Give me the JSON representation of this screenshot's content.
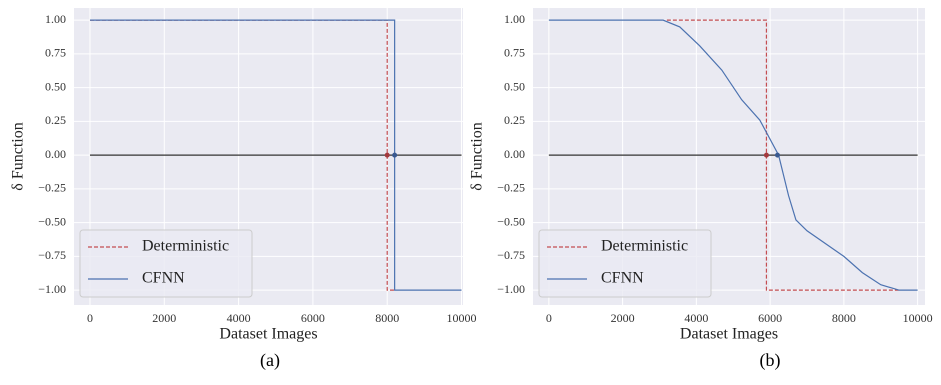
{
  "chart_data": [
    {
      "type": "line",
      "caption": "(a)",
      "xlabel": "Dataset Images",
      "ylabel": "δ Function",
      "xlim": [
        -430,
        10040
      ],
      "ylim": [
        -1.11,
        1.09
      ],
      "xticks": [
        0,
        2000,
        4000,
        6000,
        8000,
        10000
      ],
      "yticks": [
        {
          "value": -1,
          "label": "−1.00"
        },
        {
          "value": -0.75,
          "label": "−0.75"
        },
        {
          "value": -0.5,
          "label": "−0.50"
        },
        {
          "value": -0.25,
          "label": "−0.25"
        },
        {
          "value": 0,
          "label": "0.00"
        },
        {
          "value": 0.25,
          "label": "0.25"
        },
        {
          "value": 0.5,
          "label": "0.50"
        },
        {
          "value": 0.75,
          "label": "0.75"
        },
        {
          "value": 1,
          "label": "1.00"
        }
      ],
      "grid": true,
      "legend": "lower left",
      "reference_line": {
        "y": 0,
        "x": [
          0,
          10000
        ],
        "color": "#333333"
      },
      "series": [
        {
          "name": "Deterministic",
          "color": "#c44e52",
          "dash": true,
          "x": [
            0,
            8000,
            8000,
            8200
          ],
          "values": [
            1,
            1,
            -1,
            -1
          ]
        },
        {
          "name": "CFNN",
          "color": "#4c72b0",
          "dash": false,
          "x": [
            0,
            8200,
            8200,
            10000
          ],
          "values": [
            1,
            1,
            -1,
            -1
          ]
        }
      ],
      "points": [
        {
          "x": 8000,
          "y": 0,
          "color": "#a33a3e"
        },
        {
          "x": 8200,
          "y": 0,
          "color": "#3a5a90"
        }
      ]
    },
    {
      "type": "line",
      "caption": "(b)",
      "xlabel": "Dataset Images",
      "ylabel": "δ Function",
      "xlim": [
        -430,
        10200
      ],
      "ylim": [
        -1.11,
        1.09
      ],
      "xticks": [
        0,
        2000,
        4000,
        6000,
        8000,
        10000
      ],
      "yticks": [
        {
          "value": -1,
          "label": "−1.00"
        },
        {
          "value": -0.75,
          "label": "−0.75"
        },
        {
          "value": -0.5,
          "label": "−0.50"
        },
        {
          "value": -0.25,
          "label": "−0.25"
        },
        {
          "value": 0,
          "label": "0.00"
        },
        {
          "value": 0.25,
          "label": "0.25"
        },
        {
          "value": 0.5,
          "label": "0.50"
        },
        {
          "value": 0.75,
          "label": "0.75"
        },
        {
          "value": 1,
          "label": "1.00"
        }
      ],
      "grid": true,
      "legend": "lower left",
      "reference_line": {
        "y": 0,
        "x": [
          0,
          10000
        ],
        "color": "#333333"
      },
      "series": [
        {
          "name": "Deterministic",
          "color": "#c44e52",
          "dash": true,
          "x": [
            3200,
            5900,
            5900,
            9500
          ],
          "values": [
            1,
            1,
            -1,
            -1
          ]
        },
        {
          "name": "CFNN",
          "color": "#4c72b0",
          "dash": false,
          "x": [
            0,
            3100,
            3550,
            4090,
            4690,
            5230,
            5720,
            6230,
            6500,
            6700,
            7000,
            8000,
            8500,
            9000,
            9500,
            10000
          ],
          "values": [
            1,
            1,
            0.95,
            0.81,
            0.63,
            0.41,
            0.26,
            0,
            -0.3,
            -0.48,
            -0.56,
            -0.75,
            -0.87,
            -0.96,
            -1,
            -1
          ]
        }
      ],
      "points": [
        {
          "x": 5900,
          "y": 0,
          "color": "#a33a3e"
        },
        {
          "x": 6200,
          "y": 0,
          "color": "#3a5a90"
        }
      ]
    }
  ]
}
